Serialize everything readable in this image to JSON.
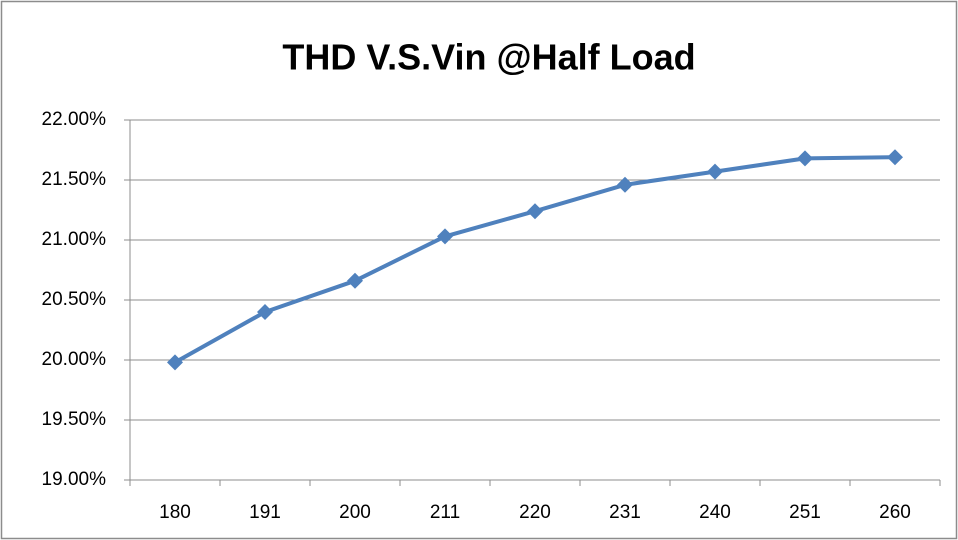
{
  "chart_data": {
    "type": "line",
    "title": "THD V.S.Vin @Half Load",
    "categories": [
      "180",
      "191",
      "200",
      "211",
      "220",
      "231",
      "240",
      "251",
      "260"
    ],
    "series": [
      {
        "name": "THD",
        "color": "#4f81bd",
        "values": [
          19.98,
          20.4,
          20.66,
          21.03,
          21.24,
          21.46,
          21.57,
          21.68,
          21.69
        ]
      }
    ],
    "ylim": [
      19,
      22
    ],
    "yticks": [
      {
        "value": 19,
        "label": "19.00%"
      },
      {
        "value": 19.5,
        "label": "19.50%"
      },
      {
        "value": 20,
        "label": "20.00%"
      },
      {
        "value": 20.5,
        "label": "20.50%"
      },
      {
        "value": 21,
        "label": "21.00%"
      },
      {
        "value": 21.5,
        "label": "21.50%"
      },
      {
        "value": 22,
        "label": "22.00%"
      }
    ],
    "grid": true
  }
}
